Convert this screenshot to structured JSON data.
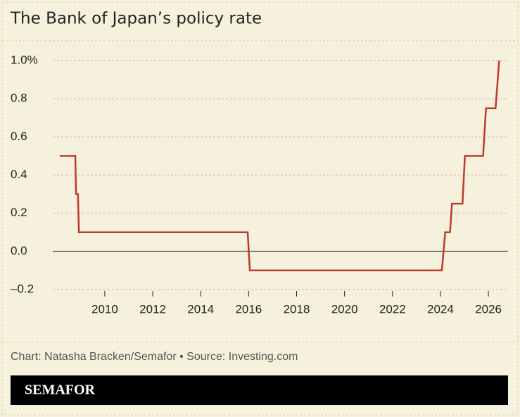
{
  "chart_data": {
    "type": "line",
    "title": "The Bank of Japan’s policy rate",
    "source": "Chart: Natasha Bracken/Semafor • Source: Investing.com",
    "brand": "SEMAFOR",
    "x": [
      2008.12,
      2008.77,
      2008.8,
      2008.88,
      2008.92,
      2015.96,
      2016.05,
      2024.06,
      2024.2,
      2024.4,
      2024.48,
      2024.92,
      2025.02,
      2025.78,
      2025.9,
      2026.3,
      2026.45
    ],
    "series": [
      {
        "name": "Policy rate",
        "color": "#c0392b",
        "values": [
          0.5,
          0.5,
          0.3,
          0.3,
          0.1,
          0.1,
          -0.1,
          -0.1,
          0.1,
          0.1,
          0.25,
          0.25,
          0.5,
          0.5,
          0.75,
          0.75,
          1.0
        ]
      }
    ],
    "xlim": [
      2007.83,
      2026.82
    ],
    "xticks": [
      2010,
      2012,
      2014,
      2016,
      2018,
      2020,
      2022,
      2024,
      2026
    ],
    "ylim": [
      -0.2,
      1.0
    ],
    "yticks": [
      {
        "value": -0.2,
        "label": "–0.2"
      },
      {
        "value": 0,
        "label": "0.0"
      },
      0.2,
      0.4,
      0.6,
      0.8,
      {
        "value": 1.0,
        "label": "1.0%"
      }
    ],
    "grid": true
  }
}
